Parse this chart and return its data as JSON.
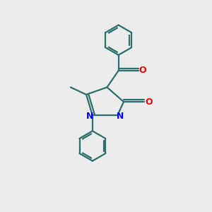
{
  "bg_color": "#ececec",
  "bond_color": "#2d6e6e",
  "nitrogen_color": "#0000ff",
  "oxygen_color": "#ff0000",
  "line_width": 1.6,
  "fig_size": [
    3.0,
    3.0
  ],
  "dpi": 100,
  "xlim": [
    0,
    10
  ],
  "ylim": [
    0,
    10
  ]
}
